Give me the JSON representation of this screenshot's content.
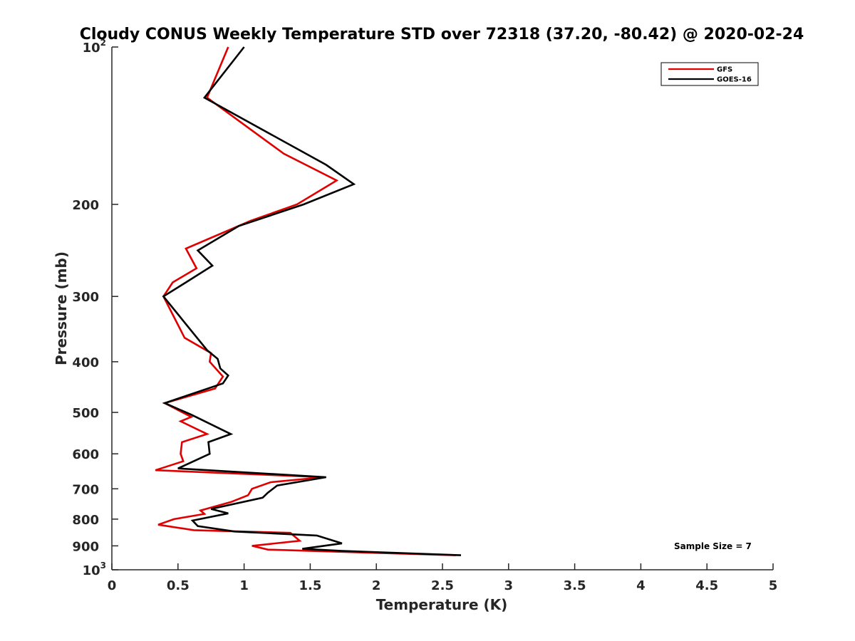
{
  "chart_data": {
    "type": "line",
    "title": "Cloudy CONUS Weekly Temperature STD over 72318 (37.20, -80.42) @ 2020-02-24",
    "xlabel": "Temperature (K)",
    "ylabel": "Pressure (mb)",
    "xlim": [
      0,
      5
    ],
    "ylim": [
      100,
      1000
    ],
    "yscale": "log",
    "yreversed": true,
    "x_ticks": [
      {
        "value": 0,
        "label": "0"
      },
      {
        "value": 0.5,
        "label": "0.5"
      },
      {
        "value": 1,
        "label": "1"
      },
      {
        "value": 1.5,
        "label": "1.5"
      },
      {
        "value": 2,
        "label": "2"
      },
      {
        "value": 2.5,
        "label": "2.5"
      },
      {
        "value": 3,
        "label": "3"
      },
      {
        "value": 3.5,
        "label": "3.5"
      },
      {
        "value": 4,
        "label": "4"
      },
      {
        "value": 4.5,
        "label": "4.5"
      },
      {
        "value": 5,
        "label": "5"
      }
    ],
    "y_ticks": [
      {
        "value": 100,
        "label": "10",
        "sup": "2"
      },
      {
        "value": 200,
        "label": "200"
      },
      {
        "value": 300,
        "label": "300"
      },
      {
        "value": 400,
        "label": "400"
      },
      {
        "value": 500,
        "label": "500"
      },
      {
        "value": 600,
        "label": "600"
      },
      {
        "value": 700,
        "label": "700"
      },
      {
        "value": 800,
        "label": "800"
      },
      {
        "value": 900,
        "label": "900"
      },
      {
        "value": 1000,
        "label": "10",
        "sup": "3"
      }
    ],
    "legend_position": "top-right",
    "annotation": "Sample Size = 7",
    "series": [
      {
        "name": "GFS",
        "color": "#e00000",
        "points": [
          [
            0.88,
            100
          ],
          [
            0.72,
            125
          ],
          [
            1.3,
            160
          ],
          [
            1.7,
            180
          ],
          [
            1.4,
            200
          ],
          [
            1.05,
            215
          ],
          [
            0.56,
            243
          ],
          [
            0.64,
            265
          ],
          [
            0.46,
            282
          ],
          [
            0.39,
            300
          ],
          [
            0.55,
            360
          ],
          [
            0.75,
            385
          ],
          [
            0.74,
            400
          ],
          [
            0.84,
            427
          ],
          [
            0.78,
            450
          ],
          [
            0.4,
            480
          ],
          [
            0.6,
            510
          ],
          [
            0.52,
            520
          ],
          [
            0.72,
            550
          ],
          [
            0.53,
            570
          ],
          [
            0.52,
            600
          ],
          [
            0.54,
            620
          ],
          [
            0.33,
            645
          ],
          [
            1.6,
            665
          ],
          [
            1.2,
            680
          ],
          [
            1.06,
            700
          ],
          [
            1.03,
            720
          ],
          [
            0.9,
            742
          ],
          [
            0.67,
            770
          ],
          [
            0.7,
            782
          ],
          [
            0.47,
            800
          ],
          [
            0.35,
            820
          ],
          [
            0.62,
            840
          ],
          [
            1.35,
            850
          ],
          [
            1.42,
            880
          ],
          [
            1.06,
            900
          ],
          [
            1.18,
            915
          ],
          [
            2.6,
            938
          ]
        ]
      },
      {
        "name": "GOES-16",
        "color": "#000000",
        "points": [
          [
            1.0,
            100
          ],
          [
            0.7,
            125
          ],
          [
            1.62,
            168
          ],
          [
            1.83,
            183
          ],
          [
            1.45,
            200
          ],
          [
            0.96,
            220
          ],
          [
            0.65,
            245
          ],
          [
            0.76,
            262
          ],
          [
            0.56,
            282
          ],
          [
            0.39,
            300
          ],
          [
            0.72,
            380
          ],
          [
            0.8,
            395
          ],
          [
            0.82,
            412
          ],
          [
            0.88,
            425
          ],
          [
            0.84,
            440
          ],
          [
            0.4,
            480
          ],
          [
            0.6,
            505
          ],
          [
            0.9,
            550
          ],
          [
            0.73,
            570
          ],
          [
            0.74,
            600
          ],
          [
            0.5,
            640
          ],
          [
            1.62,
            665
          ],
          [
            1.25,
            690
          ],
          [
            1.18,
            712
          ],
          [
            1.14,
            728
          ],
          [
            0.75,
            765
          ],
          [
            0.88,
            780
          ],
          [
            0.61,
            805
          ],
          [
            0.65,
            825
          ],
          [
            0.93,
            845
          ],
          [
            1.55,
            860
          ],
          [
            1.74,
            890
          ],
          [
            1.44,
            912
          ],
          [
            1.73,
            920
          ],
          [
            2.64,
            938
          ]
        ]
      }
    ]
  }
}
